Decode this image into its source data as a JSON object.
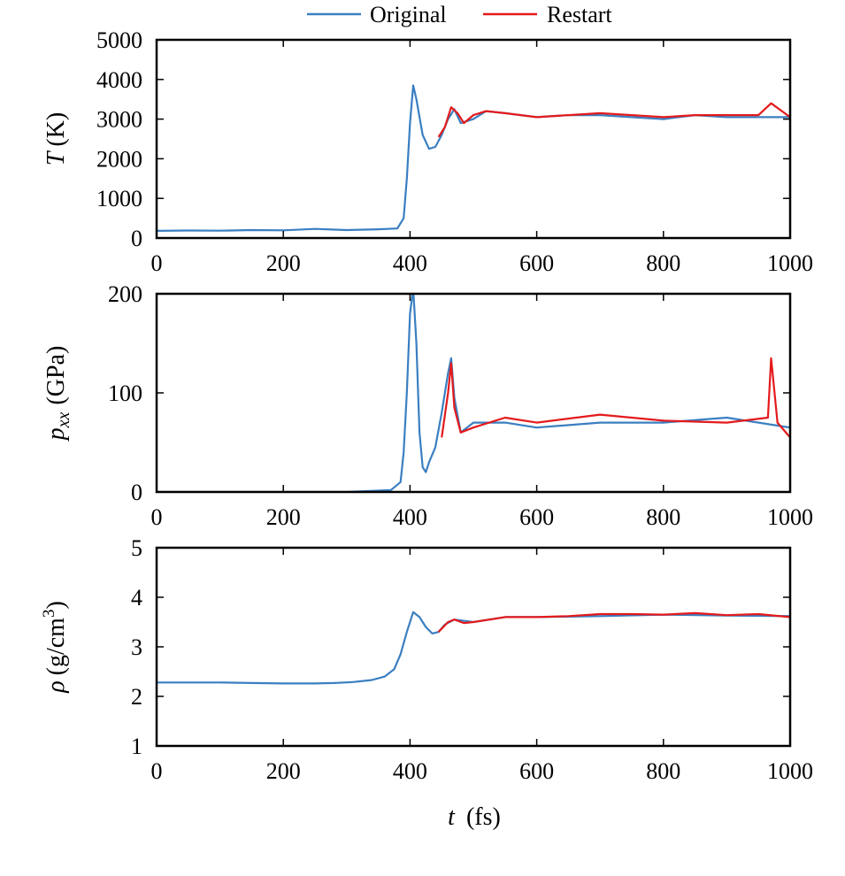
{
  "legend": [
    {
      "label": "Original",
      "color": "#3a7fc1"
    },
    {
      "label": "Restart",
      "color": "#e41a1c"
    }
  ],
  "xlabel": {
    "var": "t",
    "unit": "(fs)"
  },
  "chart_data": [
    {
      "type": "line",
      "ylabel": {
        "var": "T",
        "sub": "",
        "sup": "",
        "unit": "(K)",
        "unit_sup": "",
        "unit_tail": ""
      },
      "xlim": [
        0,
        1000
      ],
      "ylim": [
        0,
        5000
      ],
      "xticks": [
        0,
        200,
        400,
        600,
        800,
        1000
      ],
      "yticks": [
        0,
        1000,
        2000,
        3000,
        4000,
        5000
      ],
      "series": [
        {
          "name": "Original",
          "x": [
            0,
            50,
            100,
            150,
            200,
            250,
            300,
            350,
            380,
            390,
            395,
            400,
            405,
            410,
            420,
            430,
            440,
            450,
            460,
            470,
            480,
            500,
            520,
            550,
            600,
            650,
            700,
            750,
            800,
            850,
            900,
            950,
            1000
          ],
          "y": [
            180,
            190,
            185,
            200,
            195,
            230,
            200,
            220,
            240,
            500,
            1500,
            2900,
            3850,
            3500,
            2600,
            2250,
            2300,
            2600,
            3000,
            3250,
            2900,
            3000,
            3200,
            3150,
            3050,
            3100,
            3100,
            3050,
            3000,
            3100,
            3050,
            3050,
            3050
          ]
        },
        {
          "name": "Restart",
          "x": [
            445,
            455,
            465,
            475,
            485,
            500,
            520,
            550,
            600,
            650,
            700,
            750,
            800,
            850,
            900,
            950,
            970,
            1000
          ],
          "y": [
            2550,
            2800,
            3300,
            3150,
            2900,
            3100,
            3200,
            3150,
            3050,
            3100,
            3150,
            3100,
            3050,
            3100,
            3100,
            3100,
            3400,
            3050
          ]
        }
      ]
    },
    {
      "type": "line",
      "ylabel": {
        "var": "p",
        "sub": "xx",
        "sup": "",
        "unit": "(GPa)",
        "unit_sup": "",
        "unit_tail": ""
      },
      "xlim": [
        0,
        1000
      ],
      "ylim": [
        0,
        200
      ],
      "xticks": [
        0,
        200,
        400,
        600,
        800,
        1000
      ],
      "yticks": [
        0,
        100,
        200
      ],
      "series": [
        {
          "name": "Original",
          "x": [
            0,
            100,
            200,
            300,
            370,
            385,
            390,
            395,
            400,
            405,
            410,
            415,
            420,
            425,
            430,
            440,
            450,
            460,
            465,
            470,
            480,
            500,
            550,
            600,
            700,
            800,
            900,
            1000
          ],
          "y": [
            0,
            0,
            0,
            0,
            2,
            10,
            40,
            100,
            180,
            205,
            150,
            60,
            25,
            20,
            30,
            45,
            80,
            120,
            135,
            95,
            60,
            70,
            70,
            65,
            70,
            70,
            75,
            65
          ]
        },
        {
          "name": "Restart",
          "x": [
            450,
            460,
            465,
            470,
            480,
            500,
            550,
            600,
            700,
            800,
            900,
            965,
            970,
            980,
            1000
          ],
          "y": [
            55,
            100,
            130,
            85,
            60,
            65,
            75,
            70,
            78,
            72,
            70,
            75,
            135,
            70,
            55
          ]
        }
      ]
    },
    {
      "type": "line",
      "ylabel": {
        "var": "ρ",
        "sub": "",
        "sup": "",
        "unit": "(g/cm",
        "unit_sup": "3",
        "unit_tail": ")"
      },
      "xlim": [
        0,
        1000
      ],
      "ylim": [
        1,
        5
      ],
      "xticks": [
        0,
        200,
        400,
        600,
        800,
        1000
      ],
      "yticks": [
        1,
        2,
        3,
        4,
        5
      ],
      "series": [
        {
          "name": "Original",
          "x": [
            0,
            100,
            150,
            200,
            250,
            280,
            310,
            340,
            360,
            375,
            385,
            395,
            405,
            415,
            425,
            435,
            445,
            455,
            470,
            500,
            550,
            600,
            700,
            800,
            900,
            1000
          ],
          "y": [
            2.28,
            2.28,
            2.27,
            2.26,
            2.26,
            2.27,
            2.29,
            2.33,
            2.4,
            2.55,
            2.85,
            3.3,
            3.7,
            3.6,
            3.4,
            3.27,
            3.3,
            3.45,
            3.55,
            3.5,
            3.6,
            3.6,
            3.62,
            3.65,
            3.63,
            3.62
          ]
        },
        {
          "name": "Restart",
          "x": [
            445,
            460,
            470,
            485,
            500,
            550,
            600,
            650,
            700,
            750,
            800,
            850,
            900,
            950,
            1000
          ],
          "y": [
            3.3,
            3.5,
            3.55,
            3.48,
            3.5,
            3.6,
            3.6,
            3.62,
            3.66,
            3.66,
            3.65,
            3.68,
            3.64,
            3.66,
            3.6
          ]
        }
      ]
    }
  ]
}
